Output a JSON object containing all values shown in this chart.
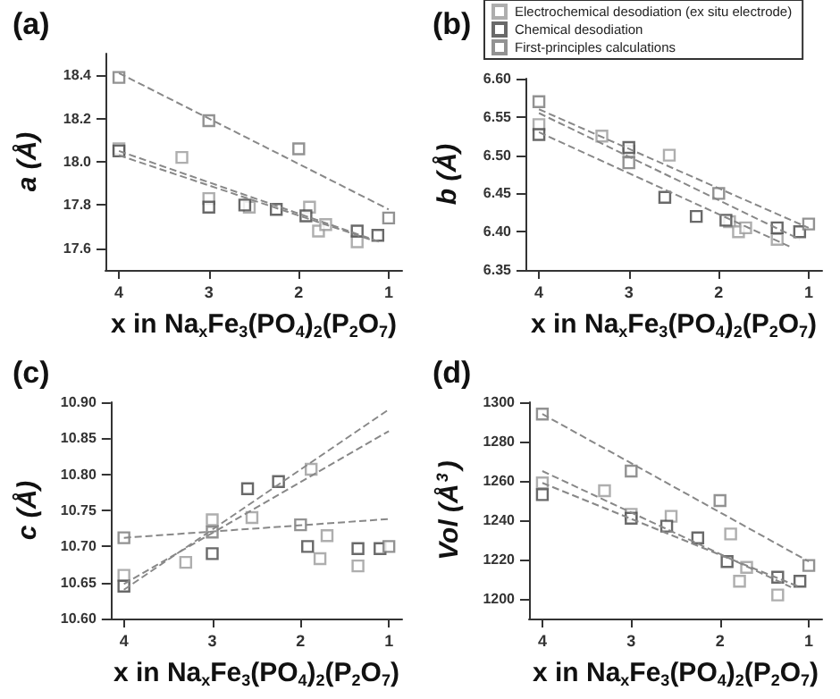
{
  "chart_data": [
    {
      "type": "scatter",
      "title": "(a)",
      "xlabel": "x in Na$_{x}$Fe$_{3}$(PO$_{4}$)$_{2}$(P$_{2}$O$_{7}$)",
      "ylabel": "a (Å)",
      "xlim": [
        4.15,
        0.85
      ],
      "xticks": [
        4,
        3,
        2,
        1
      ],
      "ylim": [
        17.5,
        18.5
      ],
      "yticks": [
        17.6,
        17.8,
        {
          "value": 18.0,
          "label": "18.0"
        },
        18.2,
        18.4
      ],
      "grid": false,
      "legend": false,
      "marker": "square",
      "series": [
        {
          "color": "#9a9a9a",
          "x": [
            4,
            3.3,
            3,
            2.55,
            1.88,
            1.78,
            1.7,
            1.35
          ],
          "values": [
            18.06,
            18.02,
            17.83,
            17.79,
            17.79,
            17.68,
            17.71,
            17.63
          ]
        },
        {
          "color": "#444444",
          "x": [
            4,
            3,
            2.6,
            2.25,
            1.92,
            1.35,
            1.12
          ],
          "values": [
            18.05,
            17.79,
            17.8,
            17.78,
            17.75,
            17.68,
            17.66
          ]
        },
        {
          "color": "#777777",
          "x": [
            4,
            3,
            2,
            1
          ],
          "values": [
            18.39,
            18.19,
            18.06,
            17.74
          ]
        },
        {
          "type": "line",
          "marker": "none",
          "line_style": "dashed",
          "color": "#888888",
          "x": [
            4,
            1
          ],
          "values": [
            18.41,
            17.78
          ]
        },
        {
          "type": "line",
          "marker": "none",
          "line_style": "dashed",
          "color": "#888888",
          "x": [
            4,
            1.1
          ],
          "values": [
            18.05,
            17.63
          ]
        },
        {
          "type": "line",
          "marker": "none",
          "line_style": "dashed",
          "color": "#888888",
          "x": [
            4,
            1.2
          ],
          "values": [
            18.03,
            17.64
          ]
        }
      ]
    },
    {
      "type": "scatter",
      "title": "(b)",
      "xlabel": "x in Na$_{x}$Fe$_{3}$(PO$_{4}$)$_{2}$(P$_{2}$O$_{7}$)",
      "ylabel": "b (Å)",
      "xlim": [
        4.15,
        0.85
      ],
      "xticks": [
        4,
        3,
        2,
        1
      ],
      "ylim": [
        6.35,
        6.6
      ],
      "yticks": [
        {
          "value": 6.35,
          "label": "6.35"
        },
        {
          "value": 6.4,
          "label": "6.40"
        },
        {
          "value": 6.45,
          "label": "6.45"
        },
        {
          "value": 6.5,
          "label": "6.50"
        },
        {
          "value": 6.55,
          "label": "6.55"
        },
        {
          "value": 6.6,
          "label": "6.60"
        }
      ],
      "grid": false,
      "legend": "top",
      "marker": "square",
      "series": [
        {
          "name": "Electrochemical desodiation (ex situ electrode)",
          "color": "#9a9a9a",
          "x": [
            4,
            3.3,
            3,
            2.55,
            1.88,
            1.78,
            1.7,
            1.35
          ],
          "values": [
            6.54,
            6.525,
            6.505,
            6.5,
            6.413,
            6.4,
            6.405,
            6.39
          ]
        },
        {
          "name": "Chemical desodiation",
          "color": "#444444",
          "x": [
            4,
            3,
            2.6,
            2.25,
            1.92,
            1.35,
            1.1
          ],
          "values": [
            6.527,
            6.51,
            6.445,
            6.42,
            6.415,
            6.405,
            6.4
          ]
        },
        {
          "name": "First-principles calculations",
          "color": "#777777",
          "x": [
            4,
            3,
            2,
            1
          ],
          "values": [
            6.57,
            6.49,
            6.45,
            6.41
          ]
        },
        {
          "type": "line",
          "marker": "none",
          "line_style": "dashed",
          "color": "#888888",
          "x": [
            4,
            1
          ],
          "values": [
            6.56,
            6.405
          ]
        },
        {
          "type": "line",
          "marker": "none",
          "line_style": "dashed",
          "color": "#888888",
          "x": [
            4,
            1.1
          ],
          "values": [
            6.555,
            6.39
          ]
        },
        {
          "type": "line",
          "marker": "none",
          "line_style": "dashed",
          "color": "#888888",
          "x": [
            4,
            1.2
          ],
          "values": [
            6.53,
            6.38
          ]
        }
      ]
    },
    {
      "type": "scatter",
      "title": "(c)",
      "xlabel": "x in Na$_{x}$Fe$_{3}$(PO$_{4}$)$_{2}$(P$_{2}$O$_{7}$)",
      "ylabel": "c (Å)",
      "xlim": [
        4.15,
        0.85
      ],
      "xticks": [
        4,
        3,
        2,
        1
      ],
      "ylim": [
        10.6,
        10.9
      ],
      "yticks": [
        {
          "value": 10.6,
          "label": "10.60"
        },
        {
          "value": 10.65,
          "label": "10.65"
        },
        {
          "value": 10.7,
          "label": "10.70"
        },
        {
          "value": 10.75,
          "label": "10.75"
        },
        {
          "value": 10.8,
          "label": "10.80"
        },
        {
          "value": 10.85,
          "label": "10.85"
        },
        {
          "value": 10.9,
          "label": "10.90"
        }
      ],
      "grid": false,
      "legend": false,
      "marker": "square",
      "series": [
        {
          "color": "#9a9a9a",
          "x": [
            4,
            3.3,
            3,
            2.55,
            1.88,
            1.78,
            1.7,
            1.35
          ],
          "values": [
            10.66,
            10.678,
            10.737,
            10.74,
            10.807,
            10.683,
            10.715,
            10.673
          ]
        },
        {
          "color": "#444444",
          "x": [
            4,
            3,
            2.6,
            2.25,
            1.92,
            1.35,
            1.1
          ],
          "values": [
            10.645,
            10.69,
            10.78,
            10.79,
            10.7,
            10.697,
            10.697
          ]
        },
        {
          "color": "#777777",
          "x": [
            4,
            3,
            2,
            1
          ],
          "values": [
            10.712,
            10.72,
            10.73,
            10.7
          ]
        },
        {
          "type": "line",
          "marker": "none",
          "line_style": "dashed",
          "color": "#888888",
          "x": [
            4,
            1
          ],
          "values": [
            10.712,
            10.738
          ]
        },
        {
          "type": "line",
          "marker": "none",
          "line_style": "dashed",
          "color": "#888888",
          "x": [
            4,
            1
          ],
          "values": [
            10.64,
            10.89
          ]
        },
        {
          "type": "line",
          "marker": "none",
          "line_style": "dashed",
          "color": "#888888",
          "x": [
            4,
            1
          ],
          "values": [
            10.648,
            10.86
          ]
        }
      ]
    },
    {
      "type": "scatter",
      "title": "(d)",
      "xlabel": "x in Na$_{x}$Fe$_{3}$(PO$_{4}$)$_{2}$(P$_{2}$O$_{7}$)",
      "ylabel": "Vol (Å$^{3}$)",
      "xlim": [
        4.15,
        0.85
      ],
      "xticks": [
        4,
        3,
        2,
        1
      ],
      "ylim": [
        1190,
        1300
      ],
      "yticks": [
        1200,
        1220,
        1240,
        1260,
        1280,
        1300
      ],
      "grid": false,
      "legend": false,
      "marker": "square",
      "series": [
        {
          "color": "#9a9a9a",
          "x": [
            4,
            3.3,
            3,
            2.55,
            1.88,
            1.78,
            1.7,
            1.35
          ],
          "values": [
            1259,
            1255,
            1243,
            1242,
            1233,
            1209,
            1216,
            1202
          ]
        },
        {
          "color": "#444444",
          "x": [
            4,
            3,
            2.6,
            2.25,
            1.92,
            1.35,
            1.1
          ],
          "values": [
            1253,
            1241,
            1237,
            1231,
            1219,
            1211,
            1209
          ]
        },
        {
          "color": "#777777",
          "x": [
            4,
            3,
            2,
            1
          ],
          "values": [
            1294,
            1265,
            1250,
            1217
          ]
        },
        {
          "type": "line",
          "marker": "none",
          "line_style": "dashed",
          "color": "#888888",
          "x": [
            4,
            1
          ],
          "values": [
            1294,
            1219
          ]
        },
        {
          "type": "line",
          "marker": "none",
          "line_style": "dashed",
          "color": "#888888",
          "x": [
            4,
            1.2
          ],
          "values": [
            1265,
            1206
          ]
        },
        {
          "type": "line",
          "marker": "none",
          "line_style": "dashed",
          "color": "#888888",
          "x": [
            4,
            1.1
          ],
          "values": [
            1259,
            1206
          ]
        }
      ]
    }
  ]
}
